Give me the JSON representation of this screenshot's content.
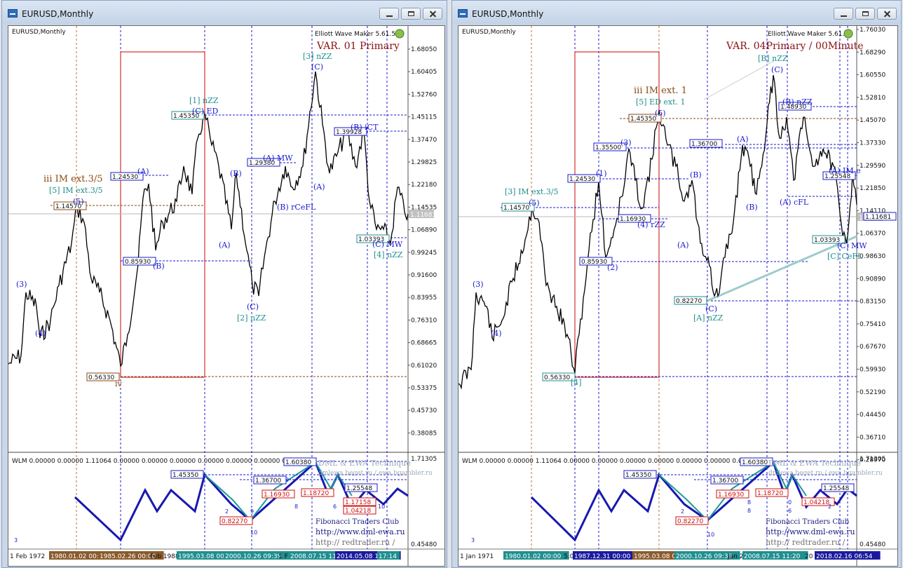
{
  "windows": [
    {
      "title": "EURUSD,Monthly",
      "symbol_label": "EURUSD,Monthly",
      "indicator_name": "Elliott Wave Maker 5.61.5",
      "variant_label": "VAR. 01 Primary",
      "current_price": "1.11681",
      "price_axis": [
        "1.68050",
        "1.60405",
        "1.52760",
        "1.45115",
        "1.37470",
        "1.29825",
        "1.22180",
        "1.14535",
        "1.06890",
        "0.99245",
        "0.91600",
        "0.83955",
        "0.76310",
        "0.68665",
        "0.61020",
        "0.53375",
        "0.45730",
        "0.38085"
      ],
      "price_boxes": [
        {
          "text": "1.14570",
          "style": "brown"
        },
        {
          "text": "1.24530",
          "style": "blue"
        },
        {
          "text": "1.45350",
          "style": "teal"
        },
        {
          "text": "1.29380",
          "style": "blue"
        },
        {
          "text": "1.39928",
          "style": "blue"
        },
        {
          "text": "0.85930",
          "style": "blue"
        },
        {
          "text": "1.03393",
          "style": "teal"
        },
        {
          "text": "0.56330",
          "style": "brown"
        }
      ],
      "wave_labels": [
        {
          "text": "iii IM ext.3/5",
          "style": "brown"
        },
        {
          "text": "[5] IM ext.3/5",
          "style": "teal"
        },
        {
          "text": "(5)",
          "style": "blue"
        },
        {
          "text": "(3)",
          "style": "blue"
        },
        {
          "text": "(4)",
          "style": "blue"
        },
        {
          "text": "iv",
          "style": "brown"
        },
        {
          "text": "(A)",
          "style": "blue"
        },
        {
          "text": "(B)",
          "style": "blue"
        },
        {
          "text": "[1] nZZ",
          "style": "teal"
        },
        {
          "text": "(C) ED",
          "style": "blue"
        },
        {
          "text": "(B)",
          "style": "blue"
        },
        {
          "text": "(A)",
          "style": "blue"
        },
        {
          "text": "(C)",
          "style": "blue"
        },
        {
          "text": "[2] nZZ",
          "style": "teal"
        },
        {
          "text": "(A) MW",
          "style": "blue"
        },
        {
          "text": "(B) rCeFL",
          "style": "blue"
        },
        {
          "text": "[3] nZZ",
          "style": "teal"
        },
        {
          "text": "(C)",
          "style": "blue"
        },
        {
          "text": "(A)",
          "style": "blue"
        },
        {
          "text": "(B) iCT",
          "style": "blue"
        },
        {
          "text": "(C) MW",
          "style": "blue"
        },
        {
          "text": "[4] nZZ",
          "style": "teal"
        }
      ],
      "sub_header": "WLM 0.00000 0.00000 1.11064 0.00000 0.00000 0.00000 0.00000 0.00000 0.00000 0.00000",
      "sub_axis": [
        "1.71305",
        "0.45480"
      ],
      "sub_boxes": [
        {
          "text": "1.45350",
          "style": "blue"
        },
        {
          "text": "1.60380",
          "style": "blue"
        },
        {
          "text": "1.36700",
          "style": "blue"
        },
        {
          "text": "0.82270",
          "style": "red"
        },
        {
          "text": "1.16930",
          "style": "red"
        },
        {
          "text": "1.18720",
          "style": "red"
        },
        {
          "text": "1.25548",
          "style": "blue"
        },
        {
          "text": "1.17158",
          "style": "red"
        },
        {
          "text": "1.04218",
          "style": "red"
        }
      ],
      "sub_numbers": [
        "2",
        "3",
        "9",
        "10",
        "8",
        "9",
        "6",
        "10"
      ],
      "watermark": [
        "DML & EWA Technique",
        "dmlewa.beget.ru / ewa.bgambler.ru",
        "Fibonacci Traders Club",
        "http://www.dml-ewa.ru",
        "http:// redtrader.ru /"
      ],
      "time_labels": [
        {
          "text": "1 Feb 1972",
          "style": "plain"
        },
        {
          "text": "1980.01.02 00:00",
          "style": "brown"
        },
        {
          "text": "1985.02.26 00:00",
          "style": "brown"
        },
        {
          "text": "Feb 1988",
          "style": "plain"
        },
        {
          "text": "1995.03.08 00:00",
          "style": "teal"
        },
        {
          "text": "2000.10.26 09:39",
          "style": "teal"
        },
        {
          "text": "1 F",
          "style": "plain"
        },
        {
          "text": "2008.07.15 11:20",
          "style": "teal"
        },
        {
          "text": "2014.05.08 15:46",
          "style": "blue"
        },
        {
          "text": "17:14",
          "style": "teal"
        }
      ]
    },
    {
      "title": "EURUSD,Monthly",
      "symbol_label": "EURUSD,Monthly",
      "indicator_name": "Elliott Wave Maker 5.61.5",
      "variant_label": "VAR. 04Primary / 00Minute",
      "current_price": "1.11681",
      "price_axis": [
        "1.76030",
        "1.68290",
        "1.60550",
        "1.52810",
        "1.45070",
        "1.37330",
        "1.29590",
        "1.21850",
        "1.14110",
        "1.06370",
        "0.98630",
        "0.90890",
        "0.83150",
        "0.75410",
        "0.67670",
        "0.59930",
        "0.52190",
        "0.44450",
        "0.36710",
        "0.28970"
      ],
      "price_boxes": [
        {
          "text": "1.14570",
          "style": "teal"
        },
        {
          "text": "1.24530",
          "style": "blue"
        },
        {
          "text": "1.35500",
          "style": "blue"
        },
        {
          "text": "1.45350",
          "style": "brown"
        },
        {
          "text": "1.16930",
          "style": "blue"
        },
        {
          "text": "0.85930",
          "style": "blue"
        },
        {
          "text": "1.36700",
          "style": "blue"
        },
        {
          "text": "1.48930",
          "style": "blue"
        },
        {
          "text": "1.25548",
          "style": "blue"
        },
        {
          "text": "1.03393",
          "style": "teal"
        },
        {
          "text": "0.82270",
          "style": "teal"
        },
        {
          "text": "0.56330",
          "style": "teal"
        },
        {
          "text": "1.11681",
          "style": "blue"
        }
      ],
      "wave_labels": [
        {
          "text": "[3] IM ext.3/5",
          "style": "teal"
        },
        {
          "text": "(5)",
          "style": "blue"
        },
        {
          "text": "(3)",
          "style": "blue"
        },
        {
          "text": "(4)",
          "style": "blue"
        },
        {
          "text": "[4]",
          "style": "teal"
        },
        {
          "text": "(1)",
          "style": "blue"
        },
        {
          "text": "(2)",
          "style": "blue"
        },
        {
          "text": "(3)",
          "style": "blue"
        },
        {
          "text": "(4) rZZ",
          "style": "blue"
        },
        {
          "text": "iii IM ext. 1",
          "style": "brown"
        },
        {
          "text": "[5] ED ext. 1",
          "style": "teal"
        },
        {
          "text": "(5)",
          "style": "blue"
        },
        {
          "text": "(B)",
          "style": "blue"
        },
        {
          "text": "(A)",
          "style": "blue"
        },
        {
          "text": "(C)",
          "style": "blue"
        },
        {
          "text": "[A] nZZ",
          "style": "teal"
        },
        {
          "text": "(A)",
          "style": "blue"
        },
        {
          "text": "(B)",
          "style": "blue"
        },
        {
          "text": "[B] nZZ",
          "style": "teal"
        },
        {
          "text": "(C)",
          "style": "blue"
        },
        {
          "text": "(B) nZZ",
          "style": "blue"
        },
        {
          "text": "(A) cFL",
          "style": "blue"
        },
        {
          "text": "(A) IM e",
          "style": "blue"
        },
        {
          "text": "(C)",
          "style": "blue"
        },
        {
          "text": "MW",
          "style": "blue"
        },
        {
          "text": "[C] CeFL",
          "style": "teal"
        }
      ],
      "sub_header": "WLM 0.00000 0.00000 1.11064 0.00000 0.00000 0.00000 0.00000 0.00000 0.00000 0.00000",
      "sub_axis": [
        "1.71305",
        "0.45480"
      ],
      "sub_boxes": [
        {
          "text": "1.45350",
          "style": "blue"
        },
        {
          "text": "1.60380",
          "style": "blue"
        },
        {
          "text": "1.36700",
          "style": "blue"
        },
        {
          "text": "0.82270",
          "style": "red"
        },
        {
          "text": "1.16930",
          "style": "red"
        },
        {
          "text": "1.18720",
          "style": "red"
        },
        {
          "text": "1.25548",
          "style": "blue"
        },
        {
          "text": "1.04218",
          "style": "red"
        }
      ],
      "sub_numbers": [
        "2",
        "3",
        "8",
        "8",
        "0",
        "6",
        "2",
        "10"
      ],
      "watermark": [
        "DML & EWA Technique",
        "dmlewa.beget.ru / ewa.bgambler.ru",
        "Fibonacci Traders Club",
        "http://www.dml-ewa.ru",
        "http:// redtrader.ru /"
      ],
      "time_labels": [
        {
          "text": "1 Jan 1971",
          "style": "plain"
        },
        {
          "text": "1980.01.02 00:00",
          "style": "teal"
        },
        {
          "text": "5.02",
          "style": "plain"
        },
        {
          "text": "1987.12.31 00:00",
          "style": "blue"
        },
        {
          "text": "1995.03.08 00:00",
          "style": "brown"
        },
        {
          "text": "2000.10.26 09:39",
          "style": "teal"
        },
        {
          "text": "Jan 2",
          "style": "plain"
        },
        {
          "text": "2008.07.15 11:20",
          "style": "teal"
        },
        {
          "text": "20",
          "style": "plain"
        },
        {
          "text": "2018.02.16 06:54",
          "style": "blue"
        }
      ]
    }
  ]
}
